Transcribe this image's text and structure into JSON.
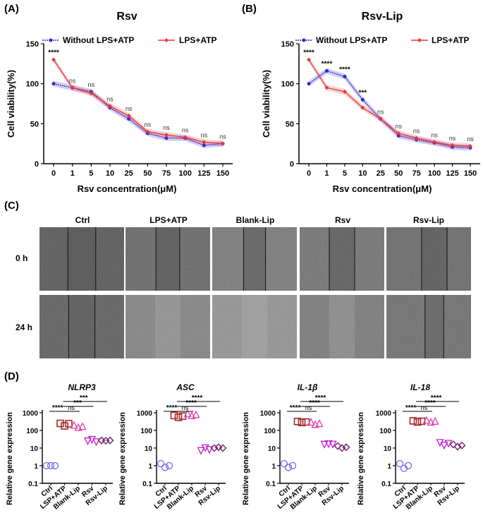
{
  "panel_labels": {
    "a": "(A)",
    "b": "(B)",
    "c": "(C)",
    "d": "(D)"
  },
  "colors": {
    "blue": "#2b2bd6",
    "red": "#e8373a",
    "dark_red": "#a52a2a",
    "pink": "#e83ea8",
    "magenta": "#c41bd0",
    "purple": "#7a2a78",
    "light_blue": "#6a6aee"
  },
  "chart_data": [
    {
      "type": "line",
      "title": "Rsv",
      "xlabel": "Rsv concentration(μM)",
      "ylabel": "Cell viability(%)",
      "categories": [
        "0",
        "1",
        "5",
        "10",
        "25",
        "50",
        "75",
        "100",
        "125",
        "150"
      ],
      "ylim": [
        0,
        150
      ],
      "yticks": [
        0,
        50,
        100,
        150
      ],
      "legend": [
        "Without LPS+ATP",
        "LPS+ATP"
      ],
      "series": [
        {
          "name": "Without LPS+ATP",
          "values": [
            100,
            95,
            90,
            70,
            56,
            38,
            32,
            32,
            23,
            25
          ]
        },
        {
          "name": "LPS+ATP",
          "values": [
            130,
            95,
            88,
            72,
            60,
            40,
            36,
            33,
            27,
            25
          ]
        }
      ],
      "annotations": [
        "****",
        "ns",
        "ns",
        "ns",
        "ns",
        "ns",
        "ns",
        "ns",
        "ns",
        "ns"
      ]
    },
    {
      "type": "line",
      "title": "Rsv-Lip",
      "xlabel": "Rsv concentration(μM)",
      "ylabel": "Cell viability(%)",
      "categories": [
        "0",
        "1",
        "5",
        "10",
        "25",
        "50",
        "75",
        "100",
        "125",
        "150"
      ],
      "ylim": [
        0,
        150
      ],
      "yticks": [
        0,
        50,
        100,
        150
      ],
      "legend": [
        "Without LPS+ATP",
        "LPS+ATP"
      ],
      "series": [
        {
          "name": "Without LPS+ATP",
          "values": [
            100,
            116,
            109,
            80,
            56,
            35,
            30,
            26,
            21,
            20
          ]
        },
        {
          "name": "LPS+ATP",
          "values": [
            130,
            95,
            90,
            70,
            56,
            38,
            32,
            27,
            23,
            22
          ]
        }
      ],
      "annotations": [
        "****",
        "****",
        "****",
        "***",
        "ns",
        "ns",
        "ns",
        "ns",
        "ns",
        "ns"
      ]
    },
    {
      "type": "scatter",
      "gene": "NLRP3",
      "ylabel": "Relative gene expression",
      "yscale": "log",
      "ylim": [
        0.1,
        1000
      ],
      "yticks": [
        "0.1",
        "1",
        "10",
        "100",
        "1000"
      ],
      "categories": [
        "Ctrl",
        "LSP+ATP",
        "Blank-Lip",
        "Rsv",
        "Rsv-Lip"
      ],
      "values": [
        [
          1,
          1,
          1
        ],
        [
          250,
          180,
          240
        ],
        [
          200,
          150,
          170
        ],
        [
          25,
          30,
          22
        ],
        [
          27,
          26,
          27
        ]
      ],
      "comparisons": [
        "****",
        "ns",
        "***",
        "***"
      ]
    },
    {
      "type": "scatter",
      "gene": "ASC",
      "ylabel": "Relative gene expression",
      "yscale": "log",
      "ylim": [
        0.1,
        1000
      ],
      "yticks": [
        "0.1",
        "1",
        "10",
        "100",
        "1000"
      ],
      "categories": [
        "Ctrl",
        "LSP+ATP",
        "Blank-Lip",
        "Rsv",
        "Rsv-Lip"
      ],
      "values": [
        [
          1.3,
          0.8,
          1
        ],
        [
          700,
          550,
          650
        ],
        [
          900,
          700,
          800
        ],
        [
          7,
          10,
          8
        ],
        [
          10,
          11,
          10
        ]
      ],
      "comparisons": [
        "****",
        "ns",
        "****",
        "****"
      ]
    },
    {
      "type": "scatter",
      "gene": "IL-1β",
      "ylabel": "Relative gene expression",
      "yscale": "log",
      "ylim": [
        0.1,
        1000
      ],
      "yticks": [
        "0.1",
        "1",
        "10",
        "100",
        "1000"
      ],
      "categories": [
        "Ctrl",
        "LSP+ATP",
        "Blank-Lip",
        "Rsv",
        "Rsv-Lip"
      ],
      "values": [
        [
          1.3,
          0.8,
          1
        ],
        [
          320,
          280,
          300
        ],
        [
          300,
          220,
          250
        ],
        [
          16,
          17,
          16
        ],
        [
          13,
          10,
          11
        ]
      ],
      "comparisons": [
        "****",
        "ns",
        "****",
        "****"
      ]
    },
    {
      "type": "scatter",
      "gene": "IL-18",
      "ylabel": "Relative gene expression",
      "yscale": "log",
      "ylim": [
        0.1,
        1000
      ],
      "yticks": [
        "0.1",
        "1",
        "10",
        "100",
        "1000"
      ],
      "categories": [
        "Ctrl",
        "LSP+ATP",
        "Blank-Lip",
        "Rsv",
        "Rsv-Lip"
      ],
      "values": [
        [
          1.3,
          0.7,
          1
        ],
        [
          350,
          300,
          330
        ],
        [
          380,
          300,
          340
        ],
        [
          20,
          14,
          18
        ],
        [
          16,
          12,
          14
        ]
      ],
      "comparisons": [
        "****",
        "ns",
        "****",
        "****"
      ]
    }
  ],
  "scratch": {
    "columns": [
      "Ctrl",
      "LPS+ATP",
      "Blank-Lip",
      "Rsv",
      "Rsv-Lip"
    ],
    "rows": [
      "0 h",
      "24 h"
    ]
  }
}
